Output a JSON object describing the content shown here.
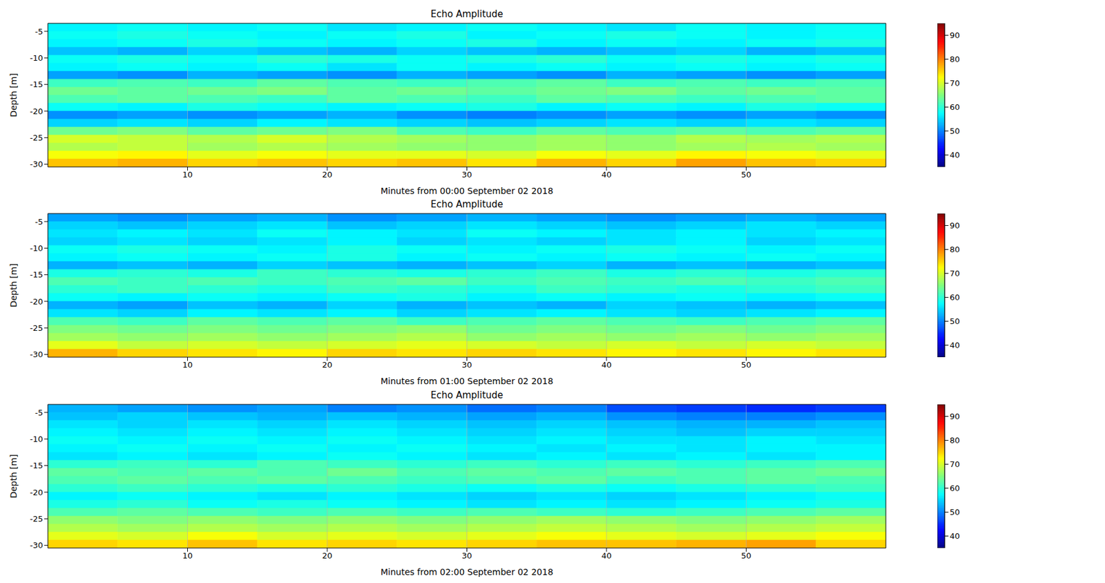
{
  "chart_data": [
    {
      "type": "heatmap",
      "title": "Echo Amplitude",
      "x_label": "Minutes from 00:00 September 02 2018",
      "y_label": "Depth [m]",
      "xlim": [
        0,
        60
      ],
      "ylim": [
        -30.5,
        -3.5
      ],
      "xticks": [
        10,
        20,
        30,
        40,
        50
      ],
      "yticks": [
        -30,
        -25,
        -20,
        -15,
        -10,
        -5
      ],
      "grid": true,
      "x_bins": [
        0,
        5,
        10,
        15,
        20,
        25,
        30,
        35,
        40,
        45,
        50,
        55,
        60
      ],
      "y_bins": [
        -3.5,
        -5,
        -6.5,
        -8,
        -9.5,
        -11,
        -12.5,
        -14,
        -15.5,
        -17,
        -18.5,
        -20,
        -21.5,
        -23,
        -24.5,
        -26,
        -27.5,
        -29,
        -30.5
      ],
      "z": [
        [
          57,
          58,
          57,
          58,
          56,
          57,
          58,
          57,
          56,
          58,
          57,
          58
        ],
        [
          58,
          59,
          58,
          57,
          58,
          59,
          57,
          58,
          59,
          58,
          57,
          58
        ],
        [
          57,
          58,
          59,
          58,
          57,
          58,
          59,
          57,
          58,
          57,
          58,
          59
        ],
        [
          54,
          53,
          55,
          54,
          53,
          55,
          54,
          53,
          54,
          55,
          53,
          54
        ],
        [
          58,
          59,
          58,
          60,
          59,
          58,
          59,
          60,
          58,
          59,
          58,
          59
        ],
        [
          57,
          58,
          57,
          58,
          56,
          58,
          57,
          58,
          57,
          58,
          57,
          58
        ],
        [
          52,
          51,
          53,
          52,
          51,
          53,
          52,
          51,
          53,
          52,
          51,
          52
        ],
        [
          61,
          62,
          61,
          63,
          62,
          61,
          62,
          63,
          61,
          62,
          61,
          62
        ],
        [
          64,
          63,
          64,
          65,
          63,
          64,
          63,
          64,
          65,
          63,
          64,
          63
        ],
        [
          62,
          63,
          62,
          61,
          63,
          62,
          61,
          63,
          62,
          61,
          62,
          63
        ],
        [
          58,
          57,
          59,
          58,
          57,
          58,
          59,
          57,
          58,
          57,
          59,
          58
        ],
        [
          51,
          52,
          51,
          52,
          53,
          51,
          50,
          51,
          52,
          51,
          52,
          51
        ],
        [
          55,
          56,
          55,
          57,
          56,
          55,
          54,
          55,
          56,
          55,
          56,
          55
        ],
        [
          64,
          65,
          63,
          64,
          65,
          62,
          61,
          63,
          62,
          63,
          62,
          63
        ],
        [
          70,
          69,
          68,
          70,
          68,
          67,
          66,
          67,
          66,
          68,
          67,
          68
        ],
        [
          68,
          69,
          67,
          68,
          67,
          66,
          66,
          67,
          66,
          67,
          68,
          67
        ],
        [
          72,
          73,
          71,
          72,
          71,
          71,
          70,
          72,
          71,
          73,
          72,
          71
        ],
        [
          76,
          77,
          75,
          76,
          75,
          76,
          74,
          77,
          75,
          78,
          76,
          75
        ]
      ],
      "colorbar": {
        "range": [
          35,
          95
        ],
        "ticks": [
          40,
          50,
          60,
          70,
          80,
          90
        ]
      }
    },
    {
      "type": "heatmap",
      "title": "Echo Amplitude",
      "x_label": "Minutes from 01:00 September 02 2018",
      "y_label": "Depth [m]",
      "xlim": [
        0,
        60
      ],
      "ylim": [
        -30.5,
        -3.5
      ],
      "xticks": [
        10,
        20,
        30,
        40,
        50
      ],
      "yticks": [
        -30,
        -25,
        -20,
        -15,
        -10,
        -5
      ],
      "grid": true,
      "x_bins": [
        0,
        5,
        10,
        15,
        20,
        25,
        30,
        35,
        40,
        45,
        50,
        55,
        60
      ],
      "y_bins": [
        -3.5,
        -5,
        -6.5,
        -8,
        -9.5,
        -11,
        -12.5,
        -14,
        -15.5,
        -17,
        -18.5,
        -20,
        -21.5,
        -23,
        -24.5,
        -26,
        -27.5,
        -29,
        -30.5
      ],
      "z": [
        [
          52,
          51,
          52,
          53,
          51,
          52,
          53,
          52,
          51,
          52,
          53,
          52
        ],
        [
          55,
          54,
          55,
          56,
          54,
          55,
          56,
          55,
          54,
          55,
          56,
          55
        ],
        [
          56,
          57,
          56,
          58,
          57,
          56,
          58,
          57,
          56,
          57,
          56,
          57
        ],
        [
          55,
          56,
          55,
          56,
          57,
          55,
          56,
          55,
          56,
          57,
          55,
          56
        ],
        [
          58,
          59,
          58,
          57,
          59,
          58,
          57,
          58,
          59,
          58,
          57,
          58
        ],
        [
          57,
          58,
          57,
          58,
          59,
          57,
          58,
          57,
          58,
          57,
          58,
          57
        ],
        [
          53,
          54,
          53,
          55,
          54,
          53,
          54,
          55,
          53,
          54,
          53,
          54
        ],
        [
          59,
          60,
          59,
          61,
          60,
          59,
          60,
          61,
          59,
          60,
          59,
          60
        ],
        [
          62,
          61,
          62,
          61,
          62,
          63,
          61,
          62,
          61,
          62,
          61,
          62
        ],
        [
          60,
          61,
          60,
          59,
          61,
          60,
          59,
          61,
          60,
          59,
          60,
          61
        ],
        [
          58,
          57,
          58,
          57,
          58,
          59,
          57,
          58,
          57,
          58,
          57,
          58
        ],
        [
          53,
          52,
          54,
          53,
          55,
          53,
          54,
          53,
          55,
          54,
          53,
          54
        ],
        [
          56,
          55,
          57,
          56,
          57,
          55,
          56,
          57,
          56,
          55,
          56,
          57
        ],
        [
          62,
          61,
          63,
          62,
          63,
          61,
          62,
          63,
          62,
          61,
          62,
          63
        ],
        [
          65,
          64,
          65,
          64,
          65,
          66,
          64,
          65,
          64,
          65,
          64,
          65
        ],
        [
          67,
          66,
          67,
          66,
          67,
          68,
          66,
          67,
          66,
          67,
          66,
          67
        ],
        [
          71,
          69,
          70,
          69,
          70,
          71,
          70,
          69,
          70,
          69,
          70,
          69
        ],
        [
          77,
          75,
          74,
          73,
          75,
          74,
          75,
          74,
          73,
          74,
          73,
          74
        ]
      ],
      "colorbar": {
        "range": [
          35,
          95
        ],
        "ticks": [
          40,
          50,
          60,
          70,
          80,
          90
        ]
      }
    },
    {
      "type": "heatmap",
      "title": "Echo Amplitude",
      "x_label": "Minutes from 02:00 September 02 2018",
      "y_label": "Depth [m]",
      "xlim": [
        0,
        60
      ],
      "ylim": [
        -30.5,
        -3.5
      ],
      "xticks": [
        10,
        20,
        30,
        40,
        50
      ],
      "yticks": [
        -30,
        -25,
        -20,
        -15,
        -10,
        -5
      ],
      "grid": true,
      "x_bins": [
        0,
        5,
        10,
        15,
        20,
        25,
        30,
        35,
        40,
        45,
        50,
        55,
        60
      ],
      "y_bins": [
        -3.5,
        -5,
        -6.5,
        -8,
        -9.5,
        -11,
        -12.5,
        -14,
        -15.5,
        -17,
        -18.5,
        -20,
        -21.5,
        -23,
        -24.5,
        -26,
        -27.5,
        -29,
        -30.5
      ],
      "z": [
        [
          53,
          52,
          51,
          52,
          50,
          51,
          49,
          50,
          47,
          46,
          45,
          46
        ],
        [
          54,
          55,
          54,
          53,
          54,
          53,
          52,
          53,
          51,
          50,
          50,
          51
        ],
        [
          56,
          55,
          56,
          55,
          56,
          55,
          54,
          55,
          54,
          53,
          53,
          54
        ],
        [
          57,
          56,
          57,
          56,
          57,
          56,
          55,
          56,
          55,
          54,
          55,
          55
        ],
        [
          58,
          57,
          58,
          57,
          58,
          57,
          56,
          57,
          56,
          56,
          57,
          56
        ],
        [
          57,
          58,
          57,
          58,
          57,
          58,
          57,
          56,
          57,
          56,
          57,
          57
        ],
        [
          56,
          57,
          56,
          57,
          58,
          57,
          56,
          57,
          56,
          57,
          56,
          57
        ],
        [
          60,
          61,
          60,
          62,
          61,
          60,
          61,
          60,
          61,
          60,
          61,
          62
        ],
        [
          63,
          62,
          63,
          62,
          64,
          62,
          63,
          62,
          63,
          62,
          63,
          64
        ],
        [
          62,
          63,
          62,
          63,
          62,
          61,
          62,
          63,
          61,
          62,
          63,
          62
        ],
        [
          60,
          61,
          60,
          59,
          60,
          59,
          58,
          59,
          58,
          59,
          60,
          61
        ],
        [
          57,
          58,
          57,
          56,
          57,
          56,
          55,
          56,
          55,
          56,
          57,
          58
        ],
        [
          59,
          60,
          58,
          59,
          58,
          57,
          56,
          57,
          56,
          57,
          58,
          59
        ],
        [
          62,
          63,
          62,
          61,
          62,
          61,
          62,
          61,
          60,
          61,
          62,
          63
        ],
        [
          66,
          65,
          66,
          65,
          66,
          65,
          66,
          67,
          66,
          65,
          66,
          67
        ],
        [
          68,
          67,
          68,
          67,
          68,
          67,
          68,
          69,
          68,
          67,
          68,
          69
        ],
        [
          71,
          70,
          72,
          70,
          71,
          70,
          71,
          72,
          71,
          70,
          71,
          72
        ],
        [
          75,
          74,
          76,
          74,
          75,
          74,
          75,
          76,
          76,
          77,
          78,
          75
        ]
      ],
      "colorbar": {
        "range": [
          35,
          95
        ],
        "ticks": [
          40,
          50,
          60,
          70,
          80,
          90
        ]
      }
    }
  ]
}
